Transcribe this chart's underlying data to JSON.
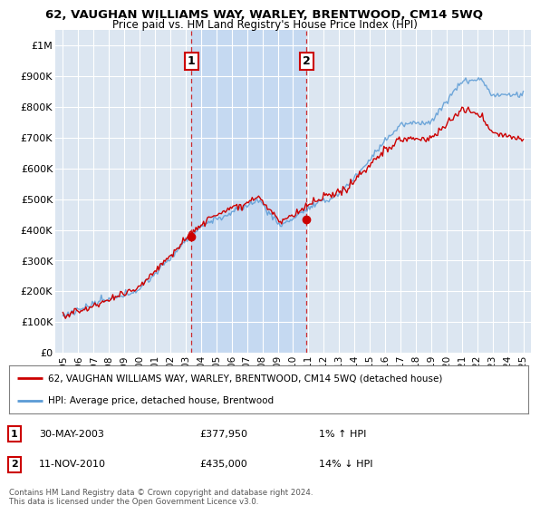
{
  "title": "62, VAUGHAN WILLIAMS WAY, WARLEY, BRENTWOOD, CM14 5WQ",
  "subtitle": "Price paid vs. HM Land Registry's House Price Index (HPI)",
  "legend_line1": "62, VAUGHAN WILLIAMS WAY, WARLEY, BRENTWOOD, CM14 5WQ (detached house)",
  "legend_line2": "HPI: Average price, detached house, Brentwood",
  "annotation1_date": "30-MAY-2003",
  "annotation1_price": "£377,950",
  "annotation1_hpi": "1% ↑ HPI",
  "annotation1_year": 2003.37,
  "annotation1_value": 377950,
  "annotation2_date": "11-NOV-2010",
  "annotation2_price": "£435,000",
  "annotation2_hpi": "14% ↓ HPI",
  "annotation2_year": 2010.87,
  "annotation2_value": 435000,
  "hpi_color": "#5b9bd5",
  "price_color": "#cc0000",
  "background_color": "#ffffff",
  "plot_bg_color": "#dce6f1",
  "shade_color": "#c5d9f1",
  "grid_color": "#ffffff",
  "ylim": [
    0,
    1050000
  ],
  "yticks": [
    0,
    100000,
    200000,
    300000,
    400000,
    500000,
    600000,
    700000,
    800000,
    900000,
    1000000
  ],
  "ytick_labels": [
    "£0",
    "£100K",
    "£200K",
    "£300K",
    "£400K",
    "£500K",
    "£600K",
    "£700K",
    "£800K",
    "£900K",
    "£1M"
  ],
  "footer": "Contains HM Land Registry data © Crown copyright and database right 2024.\nThis data is licensed under the Open Government Licence v3.0."
}
